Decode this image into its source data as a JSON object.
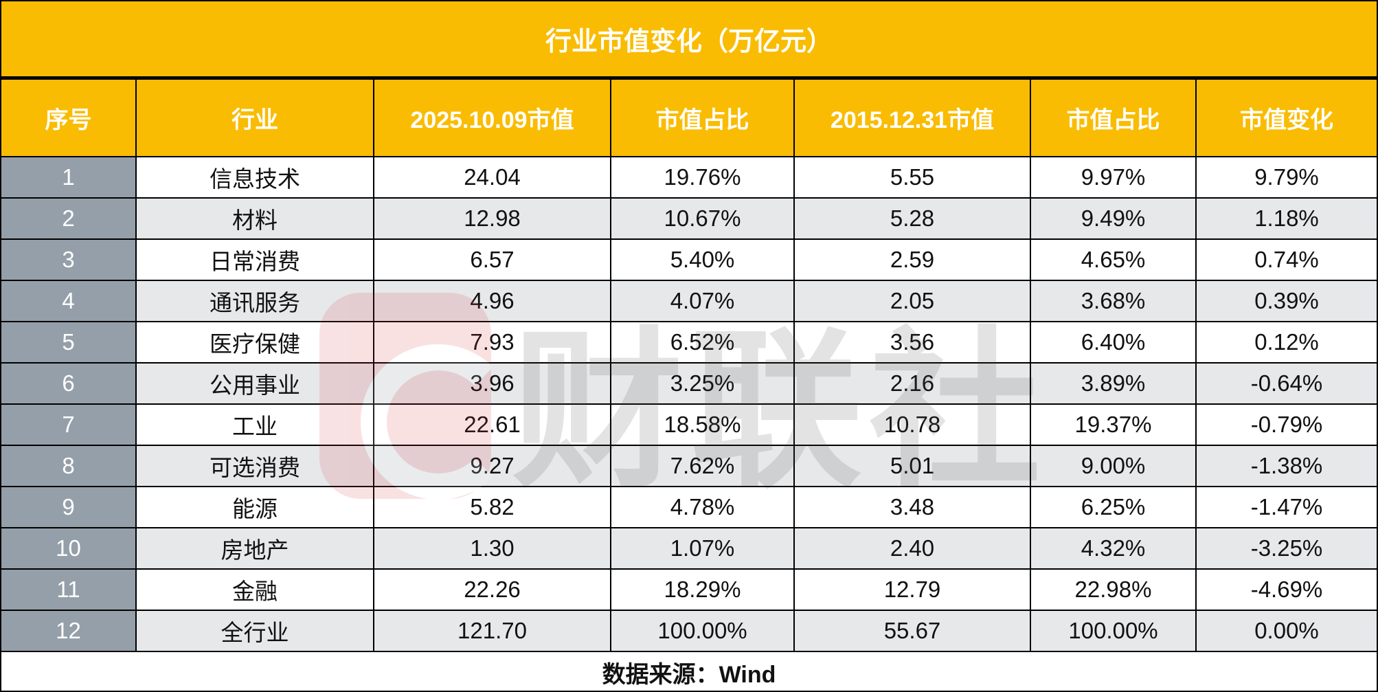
{
  "title": "行业市值变化（万亿元）",
  "headers": [
    "序号",
    "行业",
    "2025.10.09市值",
    "市值占比",
    "2015.12.31市值",
    "市值占比",
    "市值变化"
  ],
  "rows": [
    [
      "1",
      "信息技术",
      "24.04",
      "19.76%",
      "5.55",
      "9.97%",
      "9.79%"
    ],
    [
      "2",
      "材料",
      "12.98",
      "10.67%",
      "5.28",
      "9.49%",
      "1.18%"
    ],
    [
      "3",
      "日常消费",
      "6.57",
      "5.40%",
      "2.59",
      "4.65%",
      "0.74%"
    ],
    [
      "4",
      "通讯服务",
      "4.96",
      "4.07%",
      "2.05",
      "3.68%",
      "0.39%"
    ],
    [
      "5",
      "医疗保健",
      "7.93",
      "6.52%",
      "3.56",
      "6.40%",
      "0.12%"
    ],
    [
      "6",
      "公用事业",
      "3.96",
      "3.25%",
      "2.16",
      "3.89%",
      "-0.64%"
    ],
    [
      "7",
      "工业",
      "22.61",
      "18.58%",
      "10.78",
      "19.37%",
      "-0.79%"
    ],
    [
      "8",
      "可选消费",
      "9.27",
      "7.62%",
      "5.01",
      "9.00%",
      "-1.38%"
    ],
    [
      "9",
      "能源",
      "5.82",
      "4.78%",
      "3.48",
      "6.25%",
      "-1.47%"
    ],
    [
      "10",
      "房地产",
      "1.30",
      "1.07%",
      "2.40",
      "4.32%",
      "-3.25%"
    ],
    [
      "11",
      "金融",
      "22.26",
      "18.29%",
      "12.79",
      "22.98%",
      "-4.69%"
    ],
    [
      "12",
      "全行业",
      "121.70",
      "100.00%",
      "55.67",
      "100.00%",
      "0.00%"
    ]
  ],
  "footer": "数据来源：Wind",
  "watermark": "财联社",
  "colors": {
    "header": "#f9bc02",
    "index_cell": "#959fa9",
    "stripe": "#e7e8ea"
  }
}
